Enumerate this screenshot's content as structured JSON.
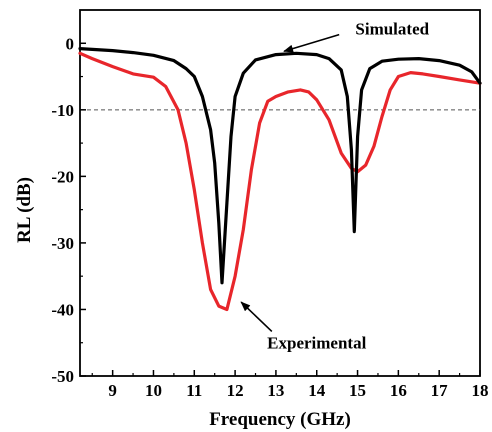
{
  "chart_data": {
    "type": "line",
    "xlabel": "Frequency (GHz)",
    "ylabel": "RL (dB)",
    "xlim": [
      8.2,
      18
    ],
    "ylim": [
      -50,
      5
    ],
    "x_ticks": [
      9,
      10,
      11,
      12,
      13,
      14,
      15,
      16,
      17,
      18
    ],
    "y_ticks": [
      0,
      -10,
      -20,
      -30,
      -40,
      -50
    ],
    "x_tick_labels": [
      "9",
      "10",
      "11",
      "12",
      "13",
      "14",
      "15",
      "16",
      "17",
      "18"
    ],
    "y_tick_labels": [
      "0",
      "-10",
      "-20",
      "-30",
      "-40",
      "-50"
    ],
    "reference_line": {
      "y": -10,
      "style": "dashed"
    },
    "grid": false,
    "series": [
      {
        "name": "Simulated",
        "color": "#000000",
        "points": [
          [
            8.2,
            -0.8
          ],
          [
            9.0,
            -1.1
          ],
          [
            9.5,
            -1.4
          ],
          [
            10.0,
            -1.8
          ],
          [
            10.5,
            -2.6
          ],
          [
            10.8,
            -3.8
          ],
          [
            11.0,
            -5.0
          ],
          [
            11.2,
            -8.0
          ],
          [
            11.4,
            -13.0
          ],
          [
            11.5,
            -18.0
          ],
          [
            11.6,
            -27.0
          ],
          [
            11.68,
            -36.0
          ],
          [
            11.8,
            -24.0
          ],
          [
            11.9,
            -14.0
          ],
          [
            12.0,
            -8.0
          ],
          [
            12.2,
            -4.5
          ],
          [
            12.5,
            -2.5
          ],
          [
            13.0,
            -1.7
          ],
          [
            13.5,
            -1.5
          ],
          [
            14.0,
            -1.7
          ],
          [
            14.3,
            -2.3
          ],
          [
            14.6,
            -4.0
          ],
          [
            14.75,
            -8.0
          ],
          [
            14.85,
            -16.0
          ],
          [
            14.92,
            -28.3
          ],
          [
            15.0,
            -14.0
          ],
          [
            15.1,
            -7.0
          ],
          [
            15.3,
            -3.8
          ],
          [
            15.6,
            -2.7
          ],
          [
            16.0,
            -2.4
          ],
          [
            16.5,
            -2.3
          ],
          [
            17.0,
            -2.6
          ],
          [
            17.5,
            -3.3
          ],
          [
            17.8,
            -4.3
          ],
          [
            18.0,
            -6.0
          ]
        ]
      },
      {
        "name": "Experimental",
        "color": "#e8262b",
        "points": [
          [
            8.2,
            -1.5
          ],
          [
            8.5,
            -2.3
          ],
          [
            9.0,
            -3.5
          ],
          [
            9.5,
            -4.6
          ],
          [
            10.0,
            -5.1
          ],
          [
            10.3,
            -6.5
          ],
          [
            10.6,
            -10.0
          ],
          [
            10.8,
            -15.0
          ],
          [
            11.0,
            -22.0
          ],
          [
            11.2,
            -30.0
          ],
          [
            11.4,
            -37.0
          ],
          [
            11.6,
            -39.5
          ],
          [
            11.8,
            -40.0
          ],
          [
            12.0,
            -35.0
          ],
          [
            12.2,
            -28.0
          ],
          [
            12.4,
            -19.0
          ],
          [
            12.6,
            -12.0
          ],
          [
            12.8,
            -8.7
          ],
          [
            13.0,
            -8.0
          ],
          [
            13.3,
            -7.3
          ],
          [
            13.6,
            -7.0
          ],
          [
            13.8,
            -7.3
          ],
          [
            14.0,
            -8.5
          ],
          [
            14.3,
            -11.5
          ],
          [
            14.6,
            -16.5
          ],
          [
            14.85,
            -18.8
          ],
          [
            15.0,
            -19.3
          ],
          [
            15.2,
            -18.3
          ],
          [
            15.4,
            -15.5
          ],
          [
            15.6,
            -11.0
          ],
          [
            15.8,
            -7.0
          ],
          [
            16.0,
            -5.0
          ],
          [
            16.3,
            -4.4
          ],
          [
            16.6,
            -4.6
          ],
          [
            17.0,
            -5.0
          ],
          [
            17.5,
            -5.5
          ],
          [
            18.0,
            -6.0
          ]
        ]
      }
    ],
    "annotations": [
      {
        "text": "Simulated",
        "label_at": [
          15.85,
          2.2
        ],
        "arrow_from": [
          14.55,
          1.3
        ],
        "arrow_to": [
          13.2,
          -1.2
        ]
      },
      {
        "text": "Experimental",
        "label_at": [
          14.0,
          -45.0
        ],
        "arrow_from": [
          12.9,
          -43.3
        ],
        "arrow_to": [
          12.15,
          -38.9
        ]
      }
    ]
  }
}
